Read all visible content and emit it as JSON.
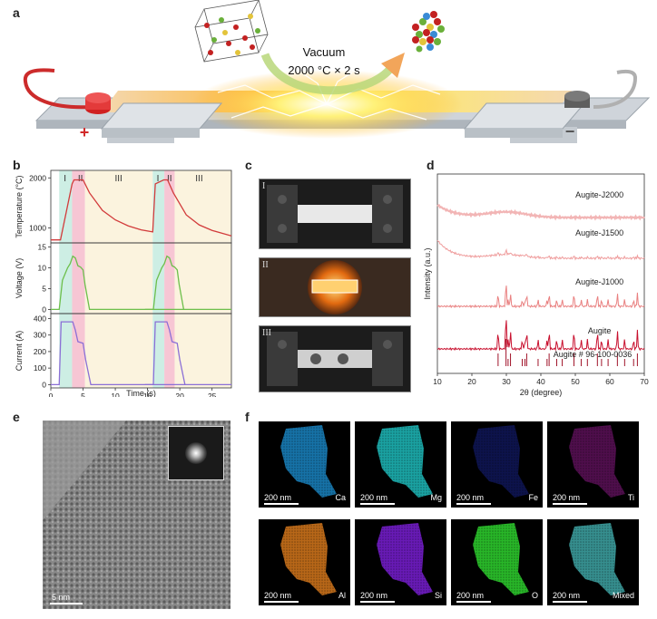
{
  "panels": {
    "a": "a",
    "b": "b",
    "c": "c",
    "d": "d",
    "e": "e",
    "f": "f"
  },
  "panel_a": {
    "line1": "Vacuum",
    "line2": "2000 °C × 2 s",
    "plus": "+",
    "minus": "−"
  },
  "panel_c": {
    "labels": [
      "I",
      "II",
      "III"
    ]
  },
  "panel_e": {
    "scale": "5 nm"
  },
  "panel_f": {
    "scale": "200 nm",
    "maps": [
      {
        "element": "Ca",
        "color": "#1a86c4"
      },
      {
        "element": "Mg",
        "color": "#1fbfbf"
      },
      {
        "element": "Fe",
        "color": "#1c2aa8"
      },
      {
        "element": "Ti",
        "color": "#b01ea8"
      },
      {
        "element": "Al",
        "color": "#d9791c"
      },
      {
        "element": "Si",
        "color": "#7a1fd6"
      },
      {
        "element": "O",
        "color": "#2fd62f"
      },
      {
        "element": "Mixed",
        "color": "#3fa8a8"
      }
    ]
  },
  "chart_data": [
    {
      "type": "line",
      "panel": "b",
      "xlabel": "Time (s)",
      "xticks": [
        0,
        5,
        10,
        15,
        20,
        25
      ],
      "xlim": [
        0,
        28
      ],
      "stage_labels": [
        "I",
        "II",
        "III"
      ],
      "stage_colors": [
        "#cdeee4",
        "#f7c6d4",
        "#fbf3de"
      ],
      "subplots": [
        {
          "ylabel": "Temperature (°C)",
          "yticks": [
            1000,
            2000
          ],
          "ylim": [
            700,
            2150
          ],
          "color": "#d23b3b",
          "x": [
            0,
            1.5,
            3.3,
            3.6,
            5,
            6,
            8,
            10,
            12,
            14,
            15.8,
            16.2,
            17.5,
            18.1,
            19,
            21,
            23,
            25,
            28
          ],
          "y": [
            760,
            760,
            1880,
            1960,
            1960,
            1700,
            1350,
            1160,
            1040,
            960,
            920,
            1880,
            1960,
            1960,
            1700,
            1260,
            1060,
            950,
            840
          ]
        },
        {
          "ylabel": "Voltage (V)",
          "yticks": [
            0,
            5,
            10,
            15
          ],
          "ylim": [
            -1,
            16
          ],
          "color": "#6dbf4b",
          "x": [
            0,
            1.3,
            1.8,
            2.2,
            2.6,
            3.0,
            3.4,
            3.8,
            4.2,
            4.6,
            5.0,
            5.3,
            6.0,
            28
          ],
          "y": [
            0,
            0,
            7,
            8.5,
            10,
            11,
            12.8,
            12.4,
            10.5,
            10.2,
            9.5,
            6,
            0,
            0
          ]
        },
        {
          "ylabel": "Current (A)",
          "yticks": [
            0,
            100,
            200,
            300,
            400
          ],
          "ylim": [
            -20,
            430
          ],
          "color": "#8b6fd6",
          "x": [
            0,
            1.3,
            1.6,
            3.4,
            3.8,
            4.2,
            5.0,
            5.4,
            6.2,
            28
          ],
          "y": [
            0,
            0,
            380,
            380,
            330,
            260,
            250,
            150,
            0,
            0
          ]
        }
      ]
    },
    {
      "type": "line",
      "panel": "d",
      "xlabel": "2θ (degree)",
      "ylabel": "Intensity (a.u.)",
      "xticks": [
        10,
        20,
        30,
        40,
        50,
        60,
        70
      ],
      "xlim": [
        10,
        70
      ],
      "series": [
        {
          "name": "Augite-J2000",
          "color": "#f2b5b5"
        },
        {
          "name": "Augite-J1500",
          "color": "#ef9c9c"
        },
        {
          "name": "Augite-J1000",
          "color": "#e98080"
        },
        {
          "name": "Augite",
          "color": "#c8102e"
        },
        {
          "name": "Augite # 96-100-0036",
          "color": "#a0142a"
        }
      ],
      "peaks": [
        27.6,
        29.9,
        30.5,
        31.2,
        34.6,
        35.4,
        35.9,
        39.2,
        41.8,
        42.4,
        44.6,
        46.2,
        49.6,
        51.7,
        53.5,
        56.4,
        57.6,
        59.5,
        62.2,
        64.3,
        66.9,
        68.0
      ]
    }
  ]
}
